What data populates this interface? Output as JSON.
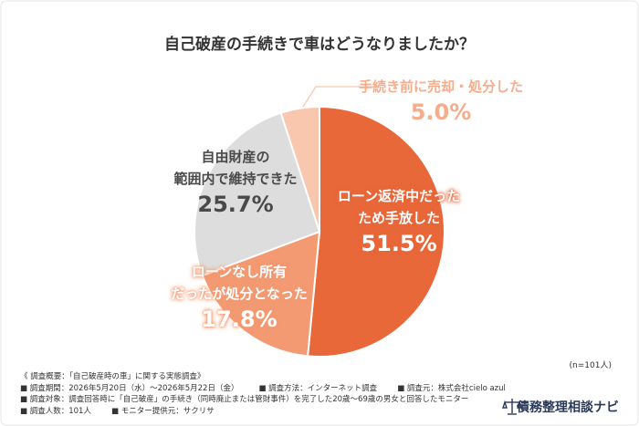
{
  "chart_data": {
    "type": "pie",
    "title": "自己破産の手続きで車はどうなりましたか？",
    "categories": [
      "ローン返済中だった\nため手放した",
      "ローンなし所有\nだったが処分となった",
      "自由財産の\n範囲内で維持できた",
      "手続き前に売却・処分した"
    ],
    "values": [
      51.5,
      17.8,
      25.7,
      5.0
    ],
    "value_labels": [
      "51.5%",
      "17.8%",
      "25.7%",
      "5.0%"
    ],
    "colors": [
      "#e8683a",
      "#f39a73",
      "#dddddd",
      "#f9c6ae"
    ],
    "label_colors": [
      "#ffffff",
      "#ffffff",
      "#4a4a4a",
      "#f5ad8c"
    ],
    "note": "(n=101人)"
  },
  "survey": {
    "heading": "《 調査概要：「自己破産時の車」に関する実態調査》",
    "rows": [
      [
        "■ 調査期間：2026年5月20日（水）～2026年5月22日（金）",
        "■ 調査方法：インターネット調査",
        "■ 調査元：株式会社cielo azul"
      ],
      [
        "■ 調査対象：調査回答時に「自己破産」の手続き（同時廃止または管財事件）を完了した20歳～69歳の男女と回答したモニター"
      ],
      [
        "■ 調査人数：101人",
        "■ モニター提供元：サクリサ"
      ]
    ]
  },
  "brand": "債務整理相談ナビ"
}
